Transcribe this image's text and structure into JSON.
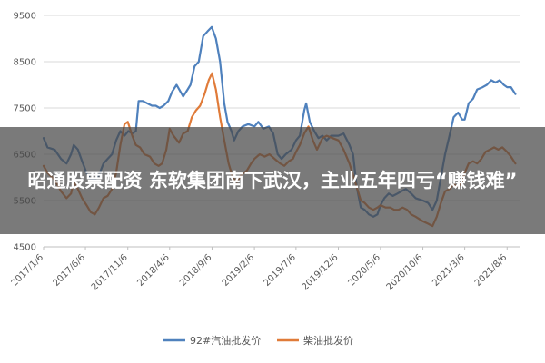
{
  "headline": "昭通股票配资 东软集团南下武汉，主业五年四亏“赚钱难”",
  "chart_data": {
    "type": "line",
    "ylim": [
      4500,
      9500
    ],
    "yticks": [
      4500,
      5500,
      6500,
      7500,
      8500,
      9500
    ],
    "xlim": [
      "2017-01-06",
      "2021-09-20"
    ],
    "xticks": [
      "2017/1/6",
      "2017/6/6",
      "2017/11/6",
      "2018/4/6",
      "2018/9/6",
      "2019/2/6",
      "2019/7/6",
      "2019/12/6",
      "2020/5/6",
      "2020/10/6",
      "2021/3/6",
      "2021/8/6"
    ],
    "grid": "horizontal",
    "legend_position": "bottom",
    "series": [
      {
        "name": "92#汽油批发价",
        "color": "#4f81bd",
        "points": [
          [
            "2017-01-06",
            6850
          ],
          [
            "2017-01-20",
            6650
          ],
          [
            "2017-02-15",
            6600
          ],
          [
            "2017-03-10",
            6400
          ],
          [
            "2017-03-30",
            6300
          ],
          [
            "2017-04-15",
            6500
          ],
          [
            "2017-04-25",
            6700
          ],
          [
            "2017-05-10",
            6600
          ],
          [
            "2017-05-25",
            6350
          ],
          [
            "2017-06-10",
            6100
          ],
          [
            "2017-06-25",
            5950
          ],
          [
            "2017-07-10",
            5950
          ],
          [
            "2017-07-25",
            6050
          ],
          [
            "2017-08-10",
            6300
          ],
          [
            "2017-08-25",
            6400
          ],
          [
            "2017-09-10",
            6500
          ],
          [
            "2017-09-25",
            6800
          ],
          [
            "2017-10-10",
            7000
          ],
          [
            "2017-10-25",
            6900
          ],
          [
            "2017-11-08",
            7000
          ],
          [
            "2017-11-22",
            6950
          ],
          [
            "2017-12-05",
            7000
          ],
          [
            "2017-12-15",
            7650
          ],
          [
            "2017-12-30",
            7650
          ],
          [
            "2018-01-15",
            7600
          ],
          [
            "2018-02-01",
            7550
          ],
          [
            "2018-02-15",
            7550
          ],
          [
            "2018-03-01",
            7500
          ],
          [
            "2018-03-15",
            7550
          ],
          [
            "2018-04-01",
            7650
          ],
          [
            "2018-04-15",
            7850
          ],
          [
            "2018-05-01",
            8000
          ],
          [
            "2018-05-15",
            7850
          ],
          [
            "2018-05-25",
            7750
          ],
          [
            "2018-06-10",
            7900
          ],
          [
            "2018-06-20",
            8000
          ],
          [
            "2018-07-05",
            8400
          ],
          [
            "2018-07-20",
            8500
          ],
          [
            "2018-08-05",
            9050
          ],
          [
            "2018-08-20",
            9150
          ],
          [
            "2018-09-05",
            9250
          ],
          [
            "2018-09-20",
            9000
          ],
          [
            "2018-10-05",
            8500
          ],
          [
            "2018-10-20",
            7600
          ],
          [
            "2018-11-01",
            7200
          ],
          [
            "2018-11-15",
            7000
          ],
          [
            "2018-11-25",
            6800
          ],
          [
            "2018-12-10",
            7000
          ],
          [
            "2018-12-25",
            7100
          ],
          [
            "2019-01-15",
            7150
          ],
          [
            "2019-02-06",
            7100
          ],
          [
            "2019-02-20",
            7200
          ],
          [
            "2019-03-10",
            7050
          ],
          [
            "2019-03-30",
            7100
          ],
          [
            "2019-04-15",
            6950
          ],
          [
            "2019-05-01",
            6500
          ],
          [
            "2019-05-15",
            6400
          ],
          [
            "2019-05-30",
            6500
          ],
          [
            "2019-06-20",
            6600
          ],
          [
            "2019-07-06",
            6800
          ],
          [
            "2019-07-20",
            6900
          ],
          [
            "2019-08-05",
            7450
          ],
          [
            "2019-08-12",
            7600
          ],
          [
            "2019-08-25",
            7200
          ],
          [
            "2019-09-10",
            7000
          ],
          [
            "2019-09-25",
            6850
          ],
          [
            "2019-10-10",
            6900
          ],
          [
            "2019-10-25",
            6800
          ],
          [
            "2019-11-10",
            6900
          ],
          [
            "2019-12-06",
            6900
          ],
          [
            "2019-12-25",
            6950
          ],
          [
            "2020-01-15",
            6700
          ],
          [
            "2020-01-28",
            6500
          ],
          [
            "2020-02-10",
            5800
          ],
          [
            "2020-02-25",
            5350
          ],
          [
            "2020-03-10",
            5300
          ],
          [
            "2020-03-25",
            5200
          ],
          [
            "2020-04-10",
            5150
          ],
          [
            "2020-04-25",
            5200
          ],
          [
            "2020-05-06",
            5400
          ],
          [
            "2020-05-20",
            5550
          ],
          [
            "2020-06-05",
            5650
          ],
          [
            "2020-06-20",
            5600
          ],
          [
            "2020-07-06",
            5650
          ],
          [
            "2020-07-20",
            5700
          ],
          [
            "2020-08-06",
            5750
          ],
          [
            "2020-08-25",
            5650
          ],
          [
            "2020-09-10",
            5550
          ],
          [
            "2020-10-06",
            5500
          ],
          [
            "2020-10-25",
            5450
          ],
          [
            "2020-11-10",
            5300
          ],
          [
            "2020-11-25",
            5500
          ],
          [
            "2020-12-10",
            6000
          ],
          [
            "2020-12-25",
            6500
          ],
          [
            "2021-01-10",
            6900
          ],
          [
            "2021-01-25",
            7300
          ],
          [
            "2021-02-10",
            7400
          ],
          [
            "2021-02-25",
            7250
          ],
          [
            "2021-03-06",
            7250
          ],
          [
            "2021-03-20",
            7600
          ],
          [
            "2021-04-05",
            7700
          ],
          [
            "2021-04-20",
            7900
          ],
          [
            "2021-05-10",
            7950
          ],
          [
            "2021-05-25",
            8000
          ],
          [
            "2021-06-10",
            8100
          ],
          [
            "2021-06-25",
            8050
          ],
          [
            "2021-07-10",
            8100
          ],
          [
            "2021-07-25",
            8000
          ],
          [
            "2021-08-06",
            7950
          ],
          [
            "2021-08-20",
            7950
          ],
          [
            "2021-09-05",
            7800
          ]
        ]
      },
      {
        "name": "柴油批发价",
        "color": "#e07b39",
        "points": [
          [
            "2017-01-06",
            6250
          ],
          [
            "2017-01-20",
            6100
          ],
          [
            "2017-02-15",
            5950
          ],
          [
            "2017-03-10",
            5700
          ],
          [
            "2017-03-30",
            5550
          ],
          [
            "2017-04-15",
            5650
          ],
          [
            "2017-04-25",
            5900
          ],
          [
            "2017-05-10",
            5750
          ],
          [
            "2017-05-25",
            5550
          ],
          [
            "2017-06-10",
            5400
          ],
          [
            "2017-06-25",
            5250
          ],
          [
            "2017-07-10",
            5200
          ],
          [
            "2017-07-25",
            5350
          ],
          [
            "2017-08-10",
            5550
          ],
          [
            "2017-08-25",
            5600
          ],
          [
            "2017-09-10",
            5750
          ],
          [
            "2017-09-25",
            6100
          ],
          [
            "2017-10-10",
            6700
          ],
          [
            "2017-10-25",
            7150
          ],
          [
            "2017-11-06",
            7200
          ],
          [
            "2017-11-22",
            6900
          ],
          [
            "2017-12-05",
            6700
          ],
          [
            "2017-12-20",
            6650
          ],
          [
            "2018-01-05",
            6500
          ],
          [
            "2018-01-25",
            6450
          ],
          [
            "2018-02-10",
            6300
          ],
          [
            "2018-02-25",
            6250
          ],
          [
            "2018-03-10",
            6300
          ],
          [
            "2018-03-25",
            6600
          ],
          [
            "2018-04-06",
            7050
          ],
          [
            "2018-04-20",
            6900
          ],
          [
            "2018-05-10",
            6750
          ],
          [
            "2018-05-25",
            6950
          ],
          [
            "2018-06-10",
            7000
          ],
          [
            "2018-06-25",
            7300
          ],
          [
            "2018-07-10",
            7450
          ],
          [
            "2018-07-25",
            7550
          ],
          [
            "2018-08-10",
            7800
          ],
          [
            "2018-08-25",
            8100
          ],
          [
            "2018-09-06",
            8250
          ],
          [
            "2018-09-20",
            7900
          ],
          [
            "2018-10-05",
            7300
          ],
          [
            "2018-10-20",
            6800
          ],
          [
            "2018-11-05",
            6300
          ],
          [
            "2018-11-20",
            6000
          ],
          [
            "2018-12-05",
            5900
          ],
          [
            "2018-12-20",
            6050
          ],
          [
            "2019-01-10",
            6150
          ],
          [
            "2019-01-25",
            6300
          ],
          [
            "2019-02-06",
            6400
          ],
          [
            "2019-02-25",
            6500
          ],
          [
            "2019-03-15",
            6450
          ],
          [
            "2019-04-01",
            6500
          ],
          [
            "2019-04-20",
            6400
          ],
          [
            "2019-05-10",
            6300
          ],
          [
            "2019-05-25",
            6250
          ],
          [
            "2019-06-10",
            6350
          ],
          [
            "2019-06-25",
            6400
          ],
          [
            "2019-07-06",
            6550
          ],
          [
            "2019-07-20",
            6700
          ],
          [
            "2019-08-05",
            6950
          ],
          [
            "2019-08-20",
            7100
          ],
          [
            "2019-09-05",
            6800
          ],
          [
            "2019-09-20",
            6600
          ],
          [
            "2019-10-10",
            6850
          ],
          [
            "2019-10-25",
            6900
          ],
          [
            "2019-11-15",
            6850
          ],
          [
            "2019-12-06",
            6800
          ],
          [
            "2019-12-25",
            6600
          ],
          [
            "2020-01-15",
            6300
          ],
          [
            "2020-02-05",
            5900
          ],
          [
            "2020-02-25",
            5500
          ],
          [
            "2020-03-10",
            5450
          ],
          [
            "2020-03-25",
            5350
          ],
          [
            "2020-04-10",
            5300
          ],
          [
            "2020-04-25",
            5350
          ],
          [
            "2020-05-06",
            5400
          ],
          [
            "2020-05-25",
            5350
          ],
          [
            "2020-06-10",
            5350
          ],
          [
            "2020-06-25",
            5300
          ],
          [
            "2020-07-10",
            5300
          ],
          [
            "2020-07-25",
            5350
          ],
          [
            "2020-08-10",
            5300
          ],
          [
            "2020-08-25",
            5200
          ],
          [
            "2020-09-10",
            5150
          ],
          [
            "2020-10-06",
            5050
          ],
          [
            "2020-10-25",
            5000
          ],
          [
            "2020-11-10",
            4950
          ],
          [
            "2020-11-25",
            5150
          ],
          [
            "2020-12-10",
            5450
          ],
          [
            "2020-12-25",
            5700
          ],
          [
            "2021-01-10",
            5750
          ],
          [
            "2021-01-25",
            5850
          ],
          [
            "2021-02-10",
            5800
          ],
          [
            "2021-02-25",
            5900
          ],
          [
            "2021-03-06",
            6100
          ],
          [
            "2021-03-20",
            6300
          ],
          [
            "2021-04-05",
            6350
          ],
          [
            "2021-04-20",
            6300
          ],
          [
            "2021-05-05",
            6400
          ],
          [
            "2021-05-20",
            6550
          ],
          [
            "2021-06-05",
            6600
          ],
          [
            "2021-06-20",
            6650
          ],
          [
            "2021-07-05",
            6600
          ],
          [
            "2021-07-20",
            6650
          ],
          [
            "2021-08-06",
            6550
          ],
          [
            "2021-08-20",
            6450
          ],
          [
            "2021-09-05",
            6300
          ]
        ]
      }
    ]
  }
}
